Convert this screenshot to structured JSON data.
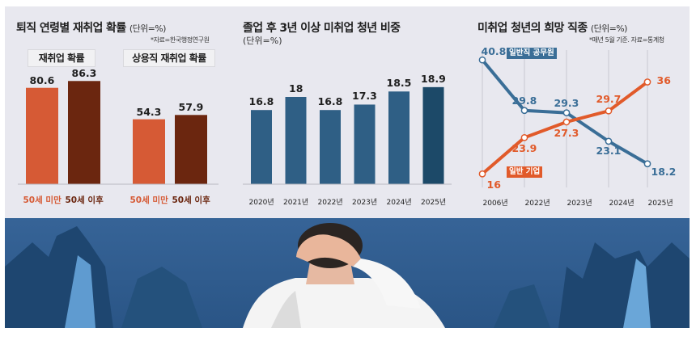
{
  "colors": {
    "panel_bg": "#e7e7ee",
    "orange": "#d65a35",
    "dark_brown": "#6b260f",
    "blue": "#2f5f85",
    "dark_blue": "#1c4968",
    "line_blue": "#3a6e97",
    "line_orange": "#e15a2a",
    "scene_sky": "#3d6fa8",
    "scene_dark": "#1d3f66"
  },
  "chart_data": [
    {
      "type": "bar",
      "title": "퇴직 연령별 재취업 확률",
      "unit": "(단위=%)",
      "note": "*자료=한국행정연구원",
      "groups": [
        {
          "name": "재취업 확률",
          "categories": [
            "50세 미만",
            "50세 이후"
          ],
          "values": [
            80.6,
            86.3
          ]
        },
        {
          "name": "상용직 재취업 확률",
          "categories": [
            "50세 미만",
            "50세 이후"
          ],
          "values": [
            54.3,
            57.9
          ]
        }
      ],
      "ylim": [
        0,
        100
      ]
    },
    {
      "type": "bar",
      "title": "졸업 후 3년 이상 미취업 청년 비중",
      "unit": "(단위=%)",
      "categories": [
        "2020년",
        "2021년",
        "2022년",
        "2023년",
        "2024년",
        "2025년"
      ],
      "values": [
        16.8,
        18.0,
        16.8,
        17.3,
        18.5,
        18.9
      ],
      "ylim": [
        0,
        20
      ]
    },
    {
      "type": "line",
      "title": "미취업 청년의 희망 직종",
      "unit": "(단위=%)",
      "note": "*매년 5월 기준. 자료=통계청",
      "x": [
        "2006년",
        "2022년",
        "2023년",
        "2024년",
        "2025년"
      ],
      "series": [
        {
          "name": "일반직 공무원",
          "values": [
            40.8,
            29.8,
            29.3,
            23.1,
            18.2
          ]
        },
        {
          "name": "일반 기업",
          "values": [
            16.0,
            23.9,
            27.3,
            29.7,
            36.0
          ]
        }
      ],
      "ylim": [
        12,
        44
      ],
      "grid": "vertical"
    }
  ]
}
